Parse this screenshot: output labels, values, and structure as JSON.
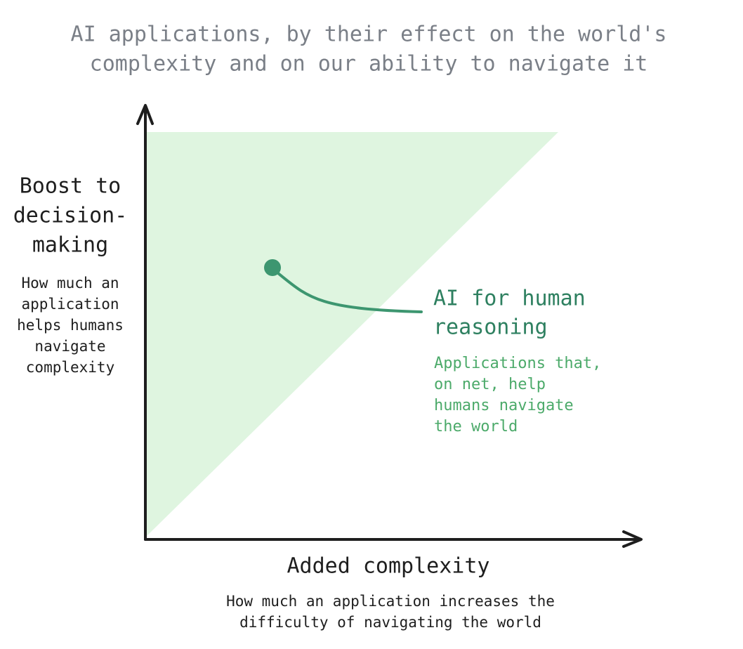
{
  "title": {
    "lines": [
      "AI applications, by their effect on the world's",
      "complexity and on our ability to navigate it"
    ]
  },
  "y_axis": {
    "label": [
      "Boost to",
      "decision-",
      "making"
    ],
    "description": [
      "How much an",
      "application",
      "helps humans",
      "navigate",
      "complexity"
    ]
  },
  "x_axis": {
    "label": "Added complexity",
    "description": [
      "How much an application increases the",
      "difficulty of navigating the world"
    ]
  },
  "annotation": {
    "label": [
      "AI for human",
      "reasoning"
    ],
    "description": [
      "Applications that,",
      "on net, help",
      "humans navigate",
      "the world"
    ]
  }
}
